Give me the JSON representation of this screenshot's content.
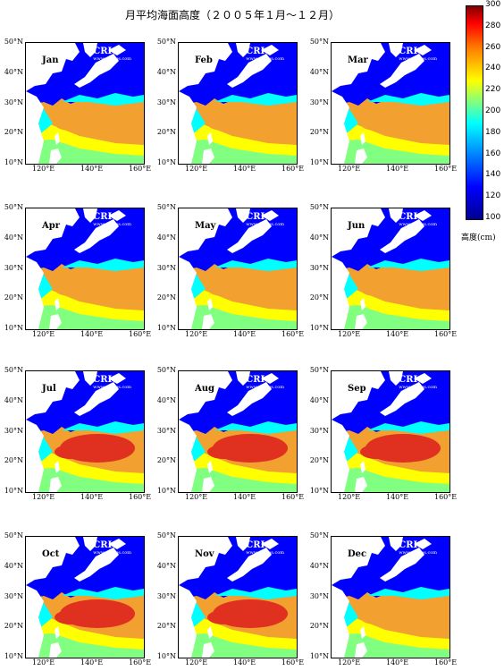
{
  "title": "月平均海面高度（２００５年１月～１２月）",
  "colorbar": {
    "ticks": [
      "300",
      "280",
      "260",
      "240",
      "220",
      "200",
      "180",
      "160",
      "140",
      "120",
      "100"
    ],
    "unit": "高度(cm)",
    "range": [
      100,
      300
    ]
  },
  "watermark": {
    "name": "CRI",
    "url": "www.cygres.com"
  },
  "y_ticks": [
    "50°N",
    "40°N",
    "30°N",
    "20°N",
    "10°N"
  ],
  "x_ticks": [
    "120°E",
    "140°E",
    "160°E"
  ],
  "colors": {
    "land": "#ffffff",
    "low": "#0000ff",
    "mid": "#00ffff",
    "green": "#80ff80",
    "yellow": "#ffff00",
    "orange": "#f2a030",
    "red": "#e03020"
  },
  "months": [
    {
      "label": "Jan"
    },
    {
      "label": "Feb"
    },
    {
      "label": "Mar"
    },
    {
      "label": "Apr"
    },
    {
      "label": "May"
    },
    {
      "label": "Jun"
    },
    {
      "label": "Jul"
    },
    {
      "label": "Aug"
    },
    {
      "label": "Sep"
    },
    {
      "label": "Oct"
    },
    {
      "label": "Nov"
    },
    {
      "label": "Dec"
    }
  ]
}
